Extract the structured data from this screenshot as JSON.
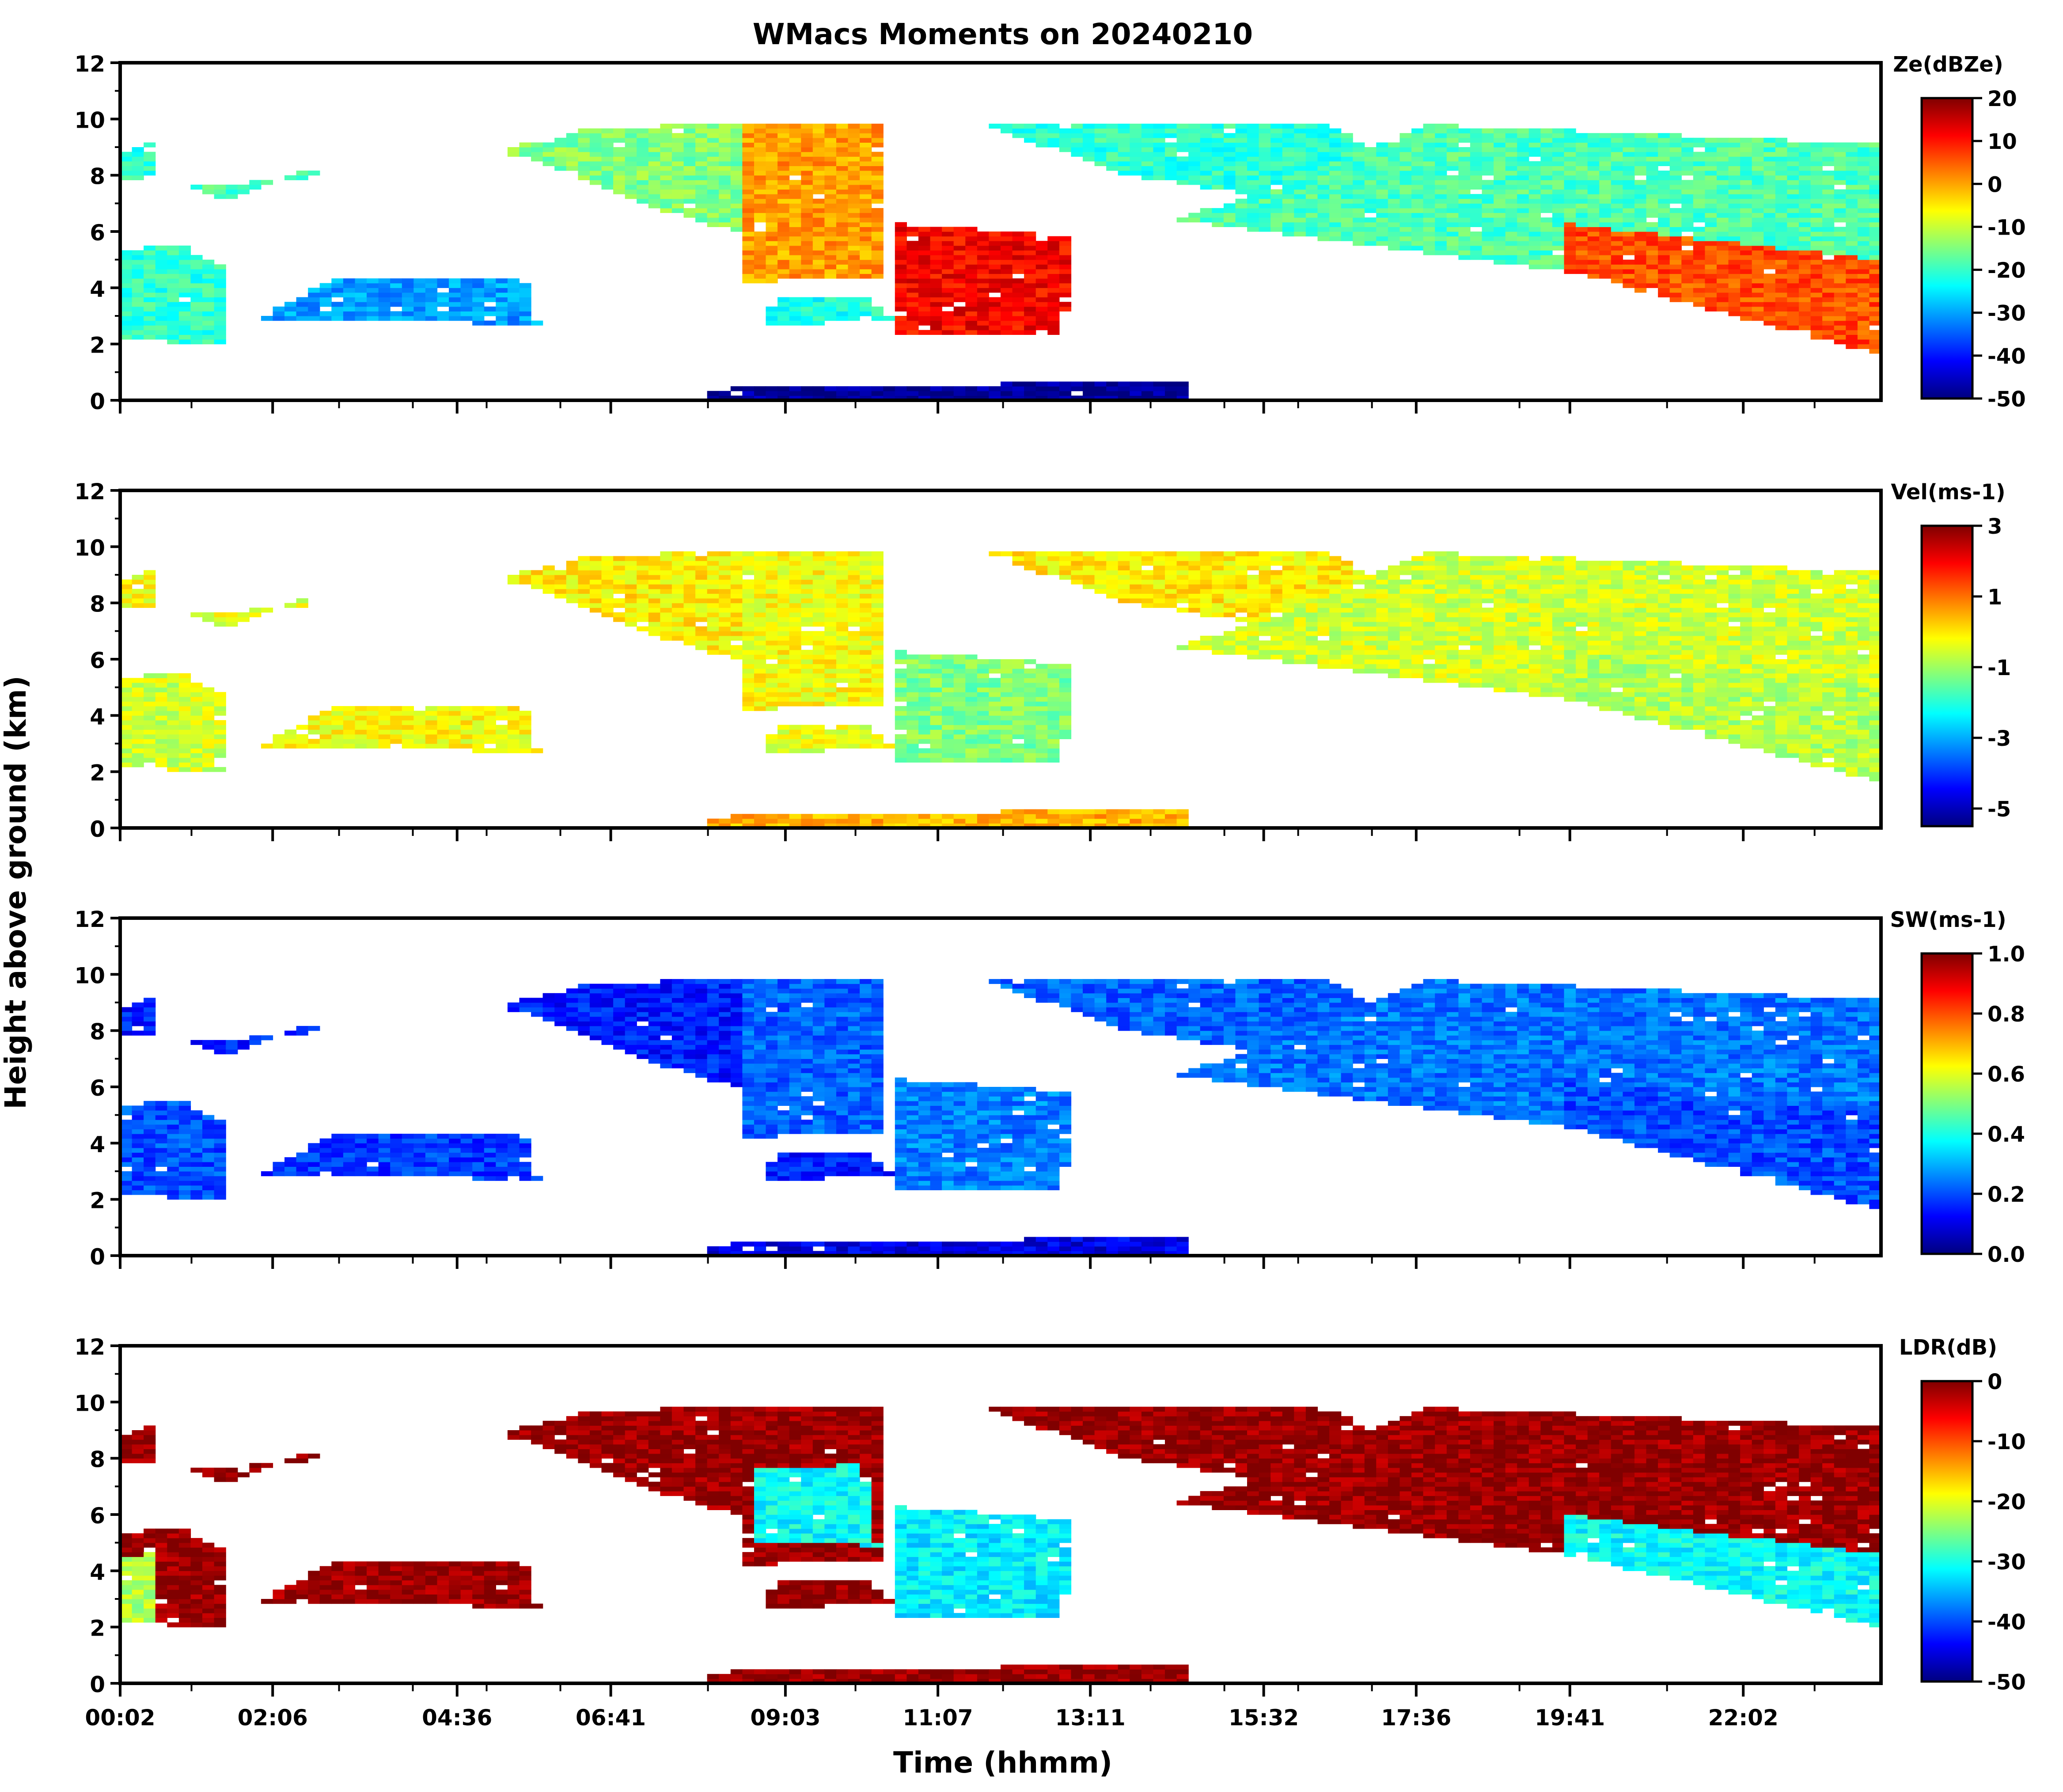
{
  "figure": {
    "title": "WMacs Moments on 20240210",
    "xlabel": "Time (hhmm)",
    "ylabel": "Height above ground (km)"
  },
  "chart_data": [
    {
      "type": "heatmap",
      "variable": "reflectivity",
      "colorbar_label": "Ze(dBZe)",
      "colorbar_ticks": [
        20,
        10,
        0,
        -10,
        -20,
        -30,
        -40,
        -50
      ],
      "colorbar_range": [
        -50,
        20
      ],
      "colormap": "jet",
      "yticks": [
        0,
        2,
        4,
        6,
        8,
        10,
        12
      ],
      "ylim": [
        0,
        12
      ],
      "xticklabels": [
        "00:02",
        "02:06",
        "04:36",
        "06:41",
        "09:03",
        "11:07",
        "13:11",
        "15:32",
        "17:36",
        "19:41",
        "22:02"
      ],
      "xtick_values_hours": [
        0.033,
        2.1,
        4.6,
        6.683,
        9.05,
        11.117,
        13.183,
        15.533,
        17.6,
        19.683,
        22.033
      ],
      "xlim_hours": [
        0.033,
        23.9
      ],
      "fill_fraction": 0.78,
      "layers": [
        {
          "t": [
            0.0,
            0.5,
            1.5,
            1.5,
            0.8,
            0.0
          ],
          "h": [
            2.2,
            2.1,
            2.0,
            4.6,
            5.6,
            5.3
          ],
          "level": 0.42
        },
        {
          "t": [
            0.1,
            0.55,
            0.55,
            0.1
          ],
          "h": [
            7.8,
            7.8,
            9.3,
            8.8
          ],
          "level": 0.42
        },
        {
          "t": [
            1.0,
            2.9,
            2.6,
            1.4
          ],
          "h": [
            7.6,
            8.0,
            8.3,
            7.1
          ],
          "level": 0.45
        },
        {
          "t": [
            1.9,
            5.7,
            5.5,
            3.0
          ],
          "h": [
            2.9,
            2.7,
            4.3,
            4.4
          ],
          "level": 0.28
        },
        {
          "t": [
            5.3,
            8.0,
            10.0,
            10.0,
            6.5,
            5.3
          ],
          "h": [
            8.8,
            6.2,
            5.3,
            9.9,
            9.7,
            9.0
          ],
          "level": 0.5
        },
        {
          "t": [
            8.5,
            10.4,
            10.3,
            8.5
          ],
          "h": [
            4.2,
            4.4,
            9.9,
            9.9
          ],
          "level": 0.72
        },
        {
          "t": [
            8.8,
            10.5,
            10.2,
            8.9
          ],
          "h": [
            2.7,
            2.8,
            3.7,
            3.6
          ],
          "level": 0.4
        },
        {
          "t": [
            10.5,
            12.8,
            13.0,
            10.5
          ],
          "h": [
            2.3,
            2.4,
            5.8,
            6.3
          ],
          "level": 0.88
        },
        {
          "t": [
            11.6,
            13.7,
            17.6,
            18.7,
            16.4,
            12.0
          ],
          "h": [
            9.9,
            8.0,
            6.4,
            6.6,
            9.8,
            9.9
          ],
          "level": 0.42
        },
        {
          "t": [
            14.4,
            21.8,
            23.9,
            23.9,
            17.8
          ],
          "h": [
            6.4,
            3.8,
            2.0,
            9.1,
            9.8
          ],
          "level": 0.45
        },
        {
          "t": [
            19.6,
            23.9,
            23.9,
            19.6
          ],
          "h": [
            4.6,
            1.6,
            5.0,
            6.3
          ],
          "level": 0.8
        },
        {
          "t": [
            8.0,
            14.5,
            14.5,
            8.0
          ],
          "h": [
            0.0,
            0.0,
            0.7,
            0.4
          ],
          "level": 0.02
        }
      ]
    },
    {
      "type": "heatmap",
      "variable": "doppler_velocity",
      "colorbar_label": "Vel(ms-1)",
      "colorbar_ticks": [
        3,
        1,
        -1,
        -3,
        -5
      ],
      "colorbar_range": [
        -5.5,
        3
      ],
      "colormap": "jet",
      "yticks": [
        0,
        2,
        4,
        6,
        8,
        10,
        12
      ],
      "ylim": [
        0,
        12
      ],
      "xticklabels": [
        "00:02",
        "02:06",
        "04:36",
        "06:41",
        "09:03",
        "11:07",
        "13:11",
        "15:32",
        "17:36",
        "19:41",
        "22:02"
      ],
      "xtick_values_hours": [
        0.033,
        2.1,
        4.6,
        6.683,
        9.05,
        11.117,
        13.183,
        15.533,
        17.6,
        19.683,
        22.033
      ],
      "xlim_hours": [
        0.033,
        23.9
      ],
      "fill_fraction": 0.78,
      "layers": [
        {
          "t": [
            0.0,
            0.5,
            1.5,
            1.5,
            0.8,
            0.0
          ],
          "h": [
            2.2,
            2.1,
            2.0,
            4.6,
            5.6,
            5.3
          ],
          "level": 0.58
        },
        {
          "t": [
            0.1,
            0.55,
            0.55,
            0.1
          ],
          "h": [
            7.8,
            7.8,
            9.3,
            8.8
          ],
          "level": 0.62
        },
        {
          "t": [
            1.0,
            2.9,
            2.6,
            1.4
          ],
          "h": [
            7.6,
            8.0,
            8.3,
            7.1
          ],
          "level": 0.6
        },
        {
          "t": [
            1.9,
            5.7,
            5.5,
            3.0
          ],
          "h": [
            2.9,
            2.7,
            4.3,
            4.4
          ],
          "level": 0.62
        },
        {
          "t": [
            5.3,
            8.0,
            10.0,
            10.0,
            6.5,
            5.3
          ],
          "h": [
            8.8,
            6.2,
            5.3,
            9.9,
            9.7,
            9.0
          ],
          "level": 0.64
        },
        {
          "t": [
            8.5,
            10.4,
            10.3,
            8.5
          ],
          "h": [
            4.2,
            4.4,
            9.9,
            9.9
          ],
          "level": 0.62
        },
        {
          "t": [
            8.8,
            10.5,
            10.2,
            8.9
          ],
          "h": [
            2.7,
            2.8,
            3.7,
            3.6
          ],
          "level": 0.6
        },
        {
          "t": [
            10.5,
            12.8,
            13.0,
            10.5
          ],
          "h": [
            2.3,
            2.4,
            5.8,
            6.3
          ],
          "level": 0.5
        },
        {
          "t": [
            11.6,
            13.7,
            17.6,
            18.7,
            16.4,
            12.0
          ],
          "h": [
            9.9,
            8.0,
            6.4,
            6.6,
            9.8,
            9.9
          ],
          "level": 0.64
        },
        {
          "t": [
            14.4,
            21.8,
            23.9,
            23.9,
            17.8
          ],
          "h": [
            6.4,
            3.8,
            2.0,
            9.1,
            9.8
          ],
          "level": 0.58
        },
        {
          "t": [
            19.6,
            23.9,
            23.9,
            19.6
          ],
          "h": [
            4.6,
            1.6,
            5.0,
            6.3
          ],
          "level": 0.55
        },
        {
          "t": [
            8.0,
            14.5,
            14.5,
            8.0
          ],
          "h": [
            0.0,
            0.0,
            0.7,
            0.4
          ],
          "level": 0.7
        }
      ]
    },
    {
      "type": "heatmap",
      "variable": "spectrum_width",
      "colorbar_label": "SW(ms-1)",
      "colorbar_ticks": [
        1.0,
        0.8,
        0.6,
        0.4,
        0.2,
        0.0
      ],
      "colorbar_range": [
        0.0,
        1.0
      ],
      "colormap": "jet",
      "yticks": [
        0,
        2,
        4,
        6,
        8,
        10,
        12
      ],
      "ylim": [
        0,
        12
      ],
      "xticklabels": [
        "00:02",
        "02:06",
        "04:36",
        "06:41",
        "09:03",
        "11:07",
        "13:11",
        "15:32",
        "17:36",
        "19:41",
        "22:02"
      ],
      "xtick_values_hours": [
        0.033,
        2.1,
        4.6,
        6.683,
        9.05,
        11.117,
        13.183,
        15.533,
        17.6,
        19.683,
        22.033
      ],
      "xlim_hours": [
        0.033,
        23.9
      ],
      "fill_fraction": 0.78,
      "layers": [
        {
          "t": [
            0.0,
            0.5,
            1.5,
            1.5,
            0.8,
            0.0
          ],
          "h": [
            2.2,
            2.1,
            2.0,
            4.6,
            5.6,
            5.3
          ],
          "level": 0.2
        },
        {
          "t": [
            0.1,
            0.55,
            0.55,
            0.1
          ],
          "h": [
            7.8,
            7.8,
            9.3,
            8.8
          ],
          "level": 0.15
        },
        {
          "t": [
            1.0,
            2.9,
            2.6,
            1.4
          ],
          "h": [
            7.6,
            8.0,
            8.3,
            7.1
          ],
          "level": 0.15
        },
        {
          "t": [
            1.9,
            5.7,
            5.5,
            3.0
          ],
          "h": [
            2.9,
            2.7,
            4.3,
            4.4
          ],
          "level": 0.18
        },
        {
          "t": [
            5.3,
            8.0,
            10.0,
            10.0,
            6.5,
            5.3
          ],
          "h": [
            8.8,
            6.2,
            5.3,
            9.9,
            9.7,
            9.0
          ],
          "level": 0.15
        },
        {
          "t": [
            8.5,
            10.4,
            10.3,
            8.5
          ],
          "h": [
            4.2,
            4.4,
            9.9,
            9.9
          ],
          "level": 0.22
        },
        {
          "t": [
            8.8,
            10.5,
            10.2,
            8.9
          ],
          "h": [
            2.7,
            2.8,
            3.7,
            3.6
          ],
          "level": 0.15
        },
        {
          "t": [
            10.5,
            12.8,
            13.0,
            10.5
          ],
          "h": [
            2.3,
            2.4,
            5.8,
            6.3
          ],
          "level": 0.25
        },
        {
          "t": [
            11.6,
            13.7,
            17.6,
            18.7,
            16.4,
            12.0
          ],
          "h": [
            9.9,
            8.0,
            6.4,
            6.6,
            9.8,
            9.9
          ],
          "level": 0.22
        },
        {
          "t": [
            14.4,
            21.8,
            23.9,
            23.9,
            17.8
          ],
          "h": [
            6.4,
            3.8,
            2.0,
            9.1,
            9.8
          ],
          "level": 0.24
        },
        {
          "t": [
            19.6,
            23.9,
            23.9,
            19.6
          ],
          "h": [
            4.6,
            1.6,
            5.0,
            6.3
          ],
          "level": 0.2
        },
        {
          "t": [
            8.0,
            14.5,
            14.5,
            8.0
          ],
          "h": [
            0.0,
            0.0,
            0.7,
            0.4
          ],
          "level": 0.1
        }
      ]
    },
    {
      "type": "heatmap",
      "variable": "linear_depolarization_ratio",
      "colorbar_label": "LDR(dB)",
      "colorbar_ticks": [
        0,
        -10,
        -20,
        -30,
        -40,
        -50
      ],
      "colorbar_range": [
        -50,
        0
      ],
      "colormap": "jet",
      "yticks": [
        0,
        2,
        4,
        6,
        8,
        10,
        12
      ],
      "ylim": [
        0,
        12
      ],
      "xticklabels": [
        "00:02",
        "02:06",
        "04:36",
        "06:41",
        "09:03",
        "11:07",
        "13:11",
        "15:32",
        "17:36",
        "19:41",
        "22:02"
      ],
      "xtick_values_hours": [
        0.033,
        2.1,
        4.6,
        6.683,
        9.05,
        11.117,
        13.183,
        15.533,
        17.6,
        19.683,
        22.033
      ],
      "xlim_hours": [
        0.033,
        23.9
      ],
      "fill_fraction": 0.78,
      "layers": [
        {
          "t": [
            0.0,
            0.5,
            1.5,
            1.5,
            0.8,
            0.0
          ],
          "h": [
            2.2,
            2.1,
            2.0,
            4.6,
            5.6,
            5.3
          ],
          "level": 0.98
        },
        {
          "t": [
            0.0,
            0.45,
            0.45,
            0.0
          ],
          "h": [
            2.2,
            2.2,
            4.6,
            4.4
          ],
          "level": 0.55
        },
        {
          "t": [
            0.1,
            0.55,
            0.55,
            0.1
          ],
          "h": [
            7.8,
            7.8,
            9.3,
            8.8
          ],
          "level": 0.98
        },
        {
          "t": [
            1.0,
            2.9,
            2.6,
            1.4
          ],
          "h": [
            7.6,
            8.0,
            8.3,
            7.1
          ],
          "level": 0.98
        },
        {
          "t": [
            1.9,
            5.7,
            5.5,
            3.0
          ],
          "h": [
            2.9,
            2.7,
            4.3,
            4.4
          ],
          "level": 0.98
        },
        {
          "t": [
            5.3,
            8.0,
            10.0,
            10.0,
            6.5,
            5.3
          ],
          "h": [
            8.8,
            6.2,
            5.3,
            9.9,
            9.7,
            9.0
          ],
          "level": 0.98
        },
        {
          "t": [
            8.5,
            10.4,
            10.3,
            8.5
          ],
          "h": [
            4.2,
            4.4,
            9.9,
            9.9
          ],
          "level": 0.98
        },
        {
          "t": [
            8.6,
            10.3,
            10.1,
            8.6
          ],
          "h": [
            5.0,
            4.9,
            7.8,
            7.6
          ],
          "level": 0.38
        },
        {
          "t": [
            8.8,
            10.5,
            10.2,
            8.9
          ],
          "h": [
            2.7,
            2.8,
            3.7,
            3.6
          ],
          "level": 0.98
        },
        {
          "t": [
            10.5,
            12.8,
            13.0,
            10.5
          ],
          "h": [
            2.3,
            2.4,
            5.8,
            6.3
          ],
          "level": 0.36
        },
        {
          "t": [
            11.6,
            13.7,
            17.6,
            18.7,
            16.4,
            12.0
          ],
          "h": [
            9.9,
            8.0,
            6.4,
            6.6,
            9.8,
            9.9
          ],
          "level": 0.98
        },
        {
          "t": [
            14.4,
            21.8,
            23.9,
            23.9,
            17.8
          ],
          "h": [
            6.4,
            3.8,
            2.0,
            9.1,
            9.8
          ],
          "level": 0.98
        },
        {
          "t": [
            19.6,
            23.9,
            23.9,
            19.6
          ],
          "h": [
            4.6,
            2.0,
            4.6,
            6.0
          ],
          "level": 0.38
        },
        {
          "t": [
            8.0,
            14.5,
            14.5,
            8.0
          ],
          "h": [
            0.0,
            0.0,
            0.7,
            0.4
          ],
          "level": 0.98
        }
      ]
    }
  ]
}
